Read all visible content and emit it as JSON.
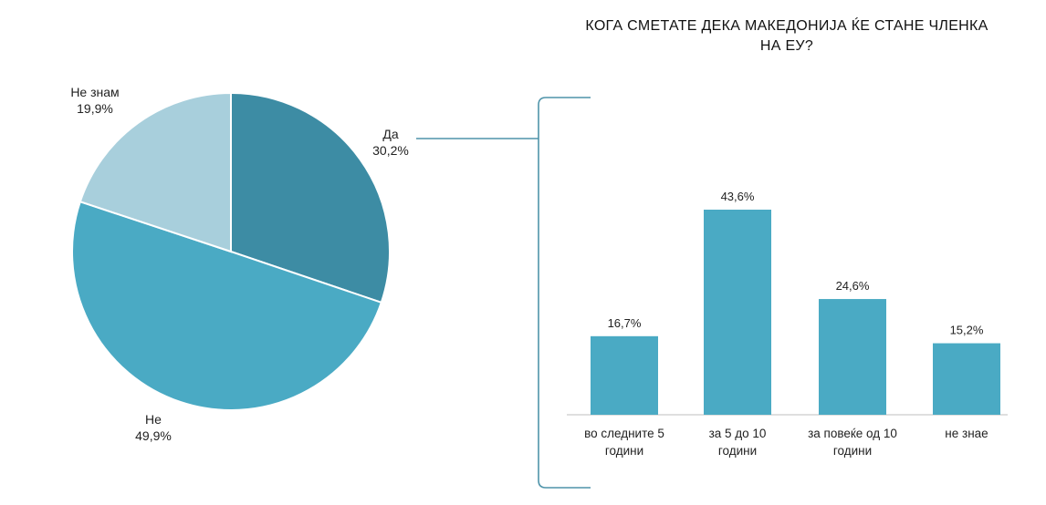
{
  "colors": {
    "da": "#3d8ca4",
    "ne": "#4aaac4",
    "ne_znam": "#a8cfdc",
    "bar": "#4aaac4",
    "connector": "#4f94aa",
    "axis": "#bfbfbf"
  },
  "chart_data": [
    {
      "type": "pie",
      "slices": [
        {
          "label": "Да",
          "value": 30.2,
          "value_label": "30,2%"
        },
        {
          "label": "Не",
          "value": 49.9,
          "value_label": "49,9%"
        },
        {
          "label": "Не знам",
          "value": 19.9,
          "value_label": "19,9%"
        }
      ]
    },
    {
      "type": "bar",
      "title_lines": [
        "КОГА СМЕТАТЕ ДЕКА МАКЕДОНИЈА ЌЕ СТАНЕ ЧЛЕНКА",
        "НА ЕУ?"
      ],
      "categories": [
        [
          "во следните 5",
          "години"
        ],
        [
          "за 5 до 10",
          "години"
        ],
        [
          "за повеќе од 10",
          "години"
        ],
        [
          "не знае"
        ]
      ],
      "values": [
        16.7,
        43.6,
        24.6,
        15.2
      ],
      "value_labels": [
        "16,7%",
        "43,6%",
        "24,6%",
        "15,2%"
      ],
      "ylim": [
        0,
        50
      ]
    }
  ]
}
